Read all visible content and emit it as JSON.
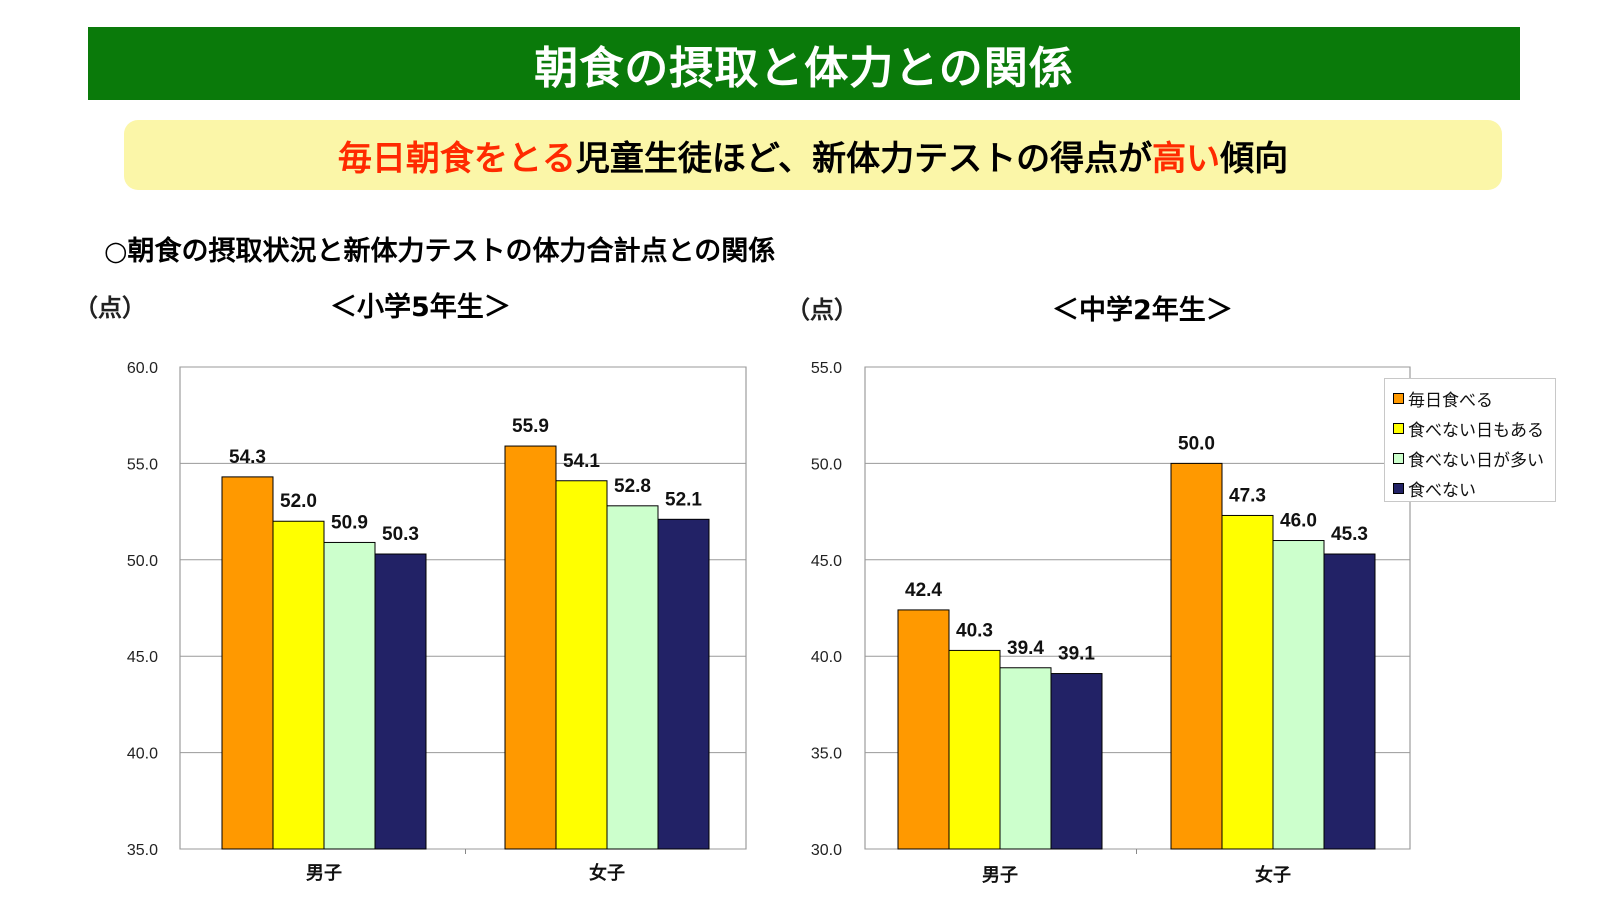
{
  "header": {
    "title": "朝食の摂取と体力との関係"
  },
  "subtitle": {
    "part1": "毎日朝食をとる",
    "part2": "児童生徒ほど、新体力テストの得点が",
    "part3": "高い",
    "part4": "傾向"
  },
  "section_heading": "○朝食の摂取状況と新体力テストの体力合計点との関係",
  "colors": {
    "title_bg": "#0a7a0a",
    "subtitle_bg": "#fbf6a8",
    "highlight": "#ff2a00"
  },
  "chart_data": [
    {
      "type": "bar",
      "title": "＜小学5年生＞",
      "ylabel": "（点）",
      "categories": [
        "男子",
        "女子"
      ],
      "ylim": [
        35.0,
        60.0
      ],
      "yticks": [
        "35.0",
        "40.0",
        "45.0",
        "50.0",
        "55.0",
        "60.0"
      ],
      "grid": true,
      "series": [
        {
          "name": "毎日食べる",
          "color": "#ff9900",
          "values": [
            54.3,
            55.9
          ]
        },
        {
          "name": "食べない日もある",
          "color": "#ffff00",
          "values": [
            52.0,
            54.1
          ]
        },
        {
          "name": "食べない日が多い",
          "color": "#ccffcc",
          "values": [
            50.9,
            52.8
          ]
        },
        {
          "name": "食べない",
          "color": "#222266",
          "values": [
            50.3,
            52.1
          ]
        }
      ],
      "data_labels": [
        [
          "54.3",
          "52.0",
          "50.9",
          "50.3"
        ],
        [
          "55.9",
          "54.1",
          "52.8",
          "52.1"
        ]
      ]
    },
    {
      "type": "bar",
      "title": "＜中学2年生＞",
      "ylabel": "（点）",
      "categories": [
        "男子",
        "女子"
      ],
      "ylim": [
        30.0,
        55.0
      ],
      "yticks": [
        "30.0",
        "35.0",
        "40.0",
        "45.0",
        "50.0",
        "55.0"
      ],
      "grid": true,
      "legend": "top-right",
      "series": [
        {
          "name": "毎日食べる",
          "color": "#ff9900",
          "values": [
            42.4,
            50.0
          ]
        },
        {
          "name": "食べない日もある",
          "color": "#ffff00",
          "values": [
            40.3,
            47.3
          ]
        },
        {
          "name": "食べない日が多い",
          "color": "#ccffcc",
          "values": [
            39.4,
            46.0
          ]
        },
        {
          "name": "食べない",
          "color": "#222266",
          "values": [
            39.1,
            45.3
          ]
        }
      ],
      "data_labels": [
        [
          "42.4",
          "40.3",
          "39.4",
          "39.1"
        ],
        [
          "50.0",
          "47.3",
          "46.0",
          "45.3"
        ]
      ]
    }
  ]
}
